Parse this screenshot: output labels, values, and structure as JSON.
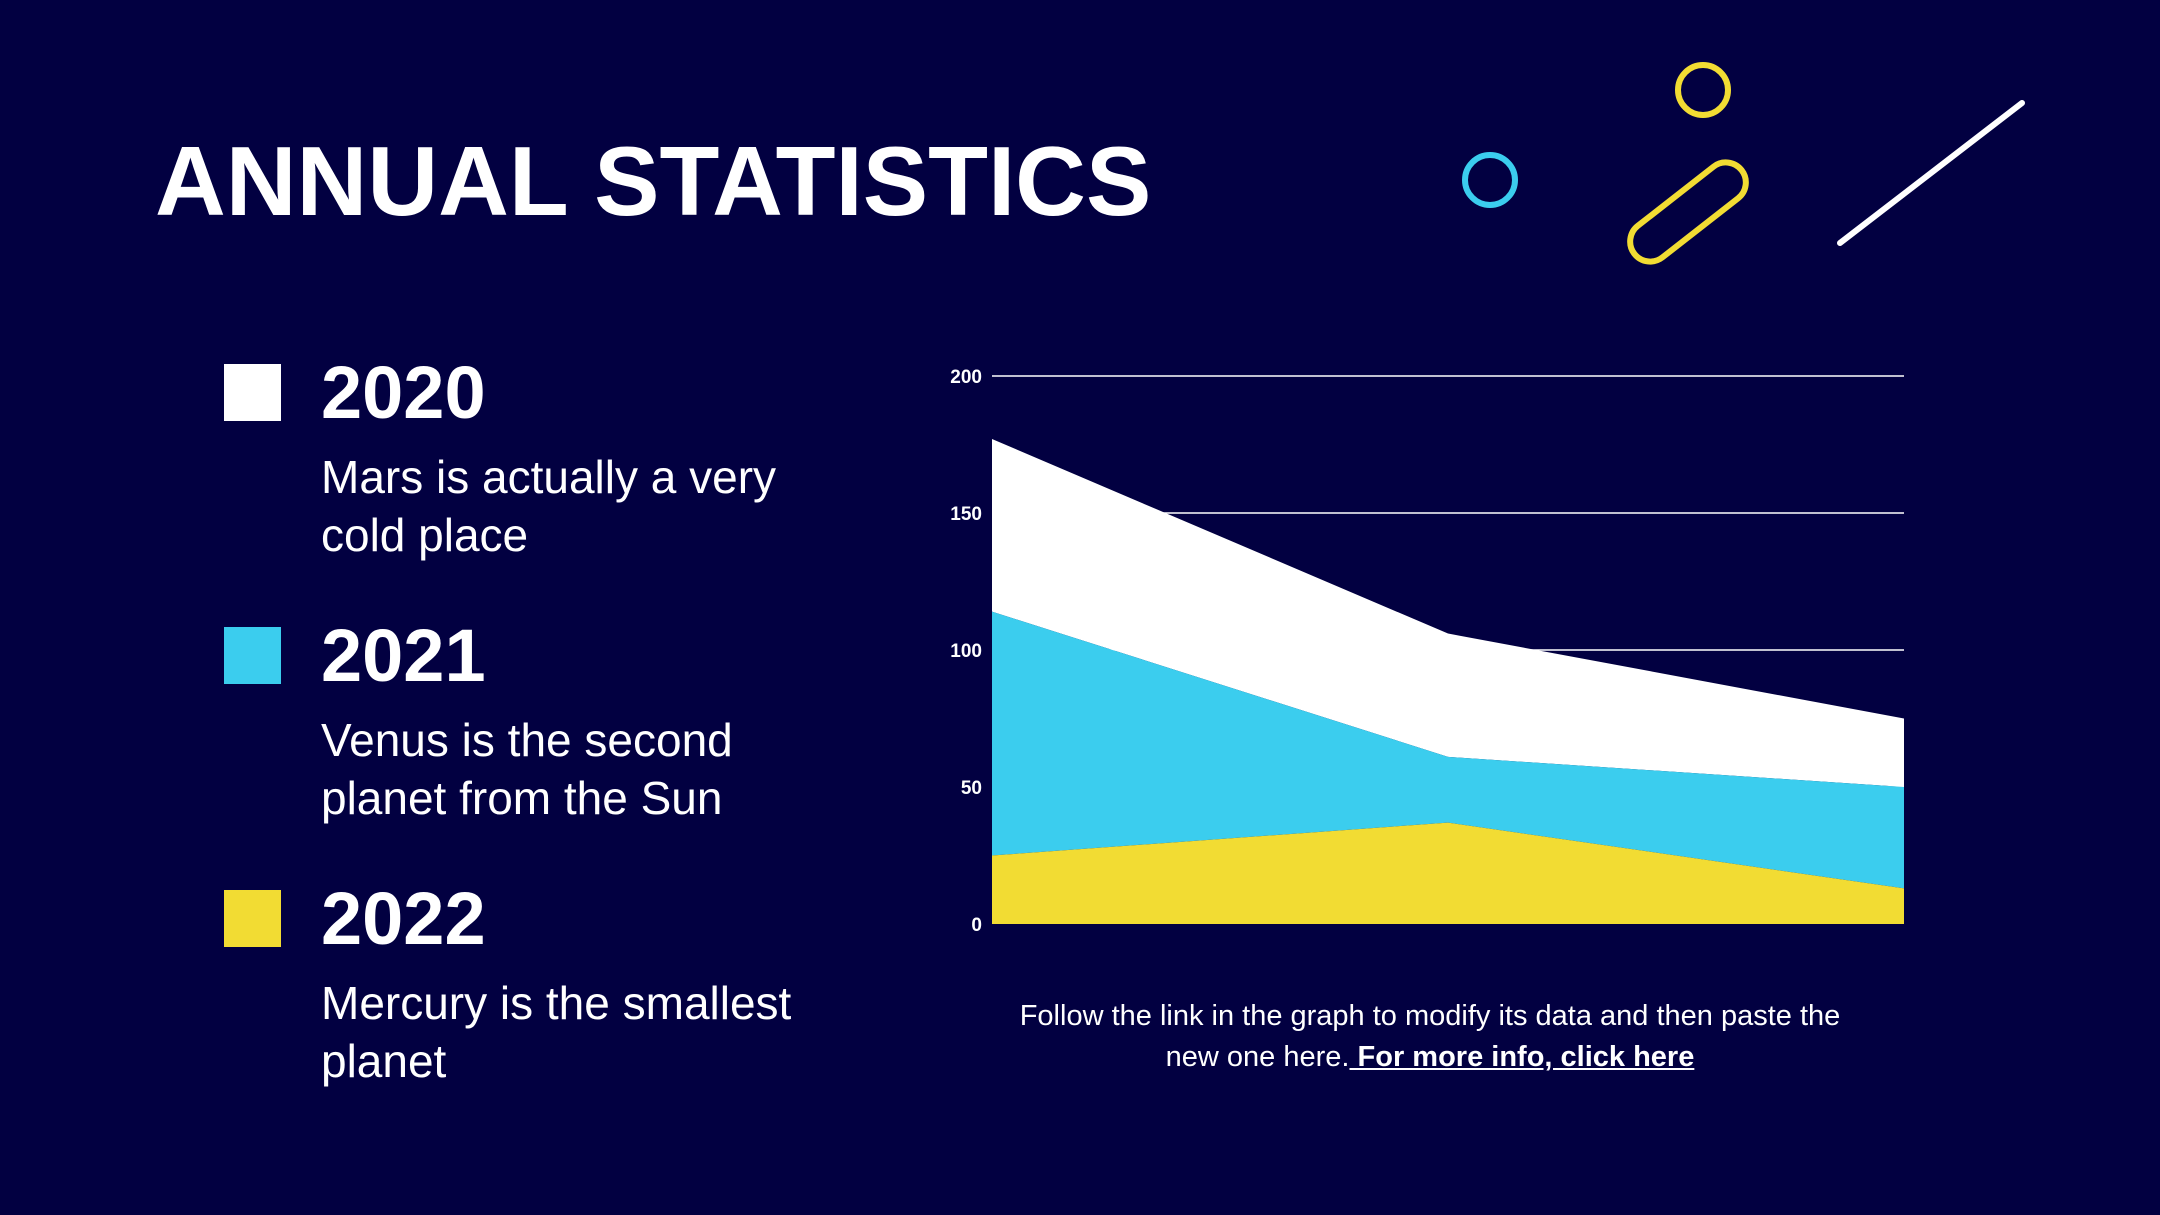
{
  "title": "ANNUAL STATISTICS",
  "legend": [
    {
      "year": "2020",
      "description": "Mars is actually a very cold place",
      "color": "#ffffff"
    },
    {
      "year": "2021",
      "description": "Venus is the second planet from the Sun",
      "color": "#3bcdee"
    },
    {
      "year": "2022",
      "description": "Mercury is the smallest planet",
      "color": "#f2dc33"
    }
  ],
  "colors": {
    "background": "#020041",
    "white": "#ffffff",
    "cyan": "#3bcdee",
    "yellow": "#f2dc33"
  },
  "chart_data": {
    "type": "area",
    "stacked": true,
    "title": "",
    "xlabel": "",
    "ylabel": "",
    "categories": [
      "",
      "",
      ""
    ],
    "ylim": [
      0,
      200
    ],
    "yticks": [
      0,
      50,
      100,
      150,
      200
    ],
    "ytick_labels": [
      "0",
      "50",
      "100",
      "150",
      "200"
    ],
    "grid": true,
    "series": [
      {
        "name": "2022",
        "color": "#f2dc33",
        "values": [
          25,
          37,
          13
        ]
      },
      {
        "name": "2021",
        "color": "#3bcdee",
        "values": [
          89,
          24,
          37
        ]
      },
      {
        "name": "2020",
        "color": "#ffffff",
        "values": [
          63,
          45,
          25
        ]
      }
    ]
  },
  "caption": {
    "text": "Follow the link in the graph to modify its data and then paste the new one here.",
    "link": " For more info, click here"
  },
  "decorations": [
    "cyan-ring-icon",
    "yellow-ring-icon",
    "yellow-pill-icon",
    "white-line-icon"
  ]
}
